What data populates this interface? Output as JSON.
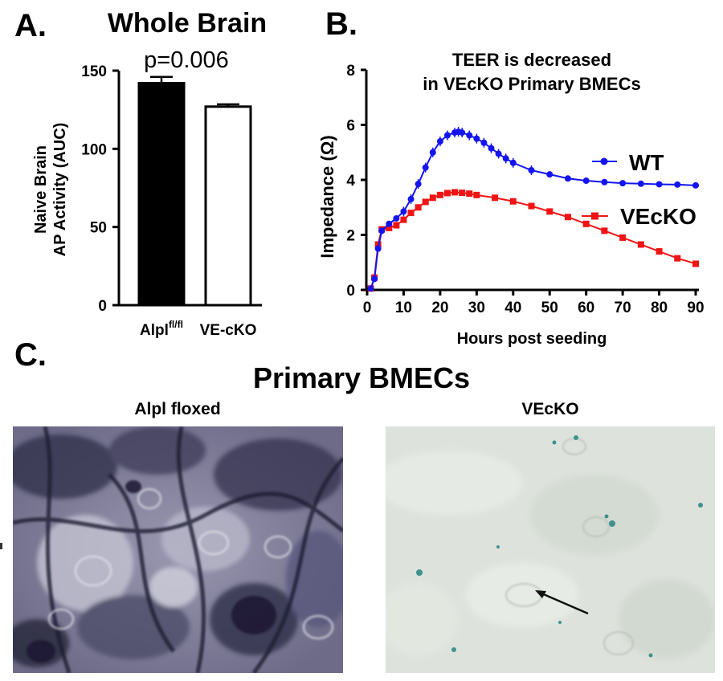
{
  "panels": {
    "a": {
      "letter": "A.",
      "title": "Whole Brain",
      "pvalue": "p=0.006",
      "ylabel_line1": "Naive Brain",
      "ylabel_line2": "AP Activity (AUC)",
      "ytick_labels": [
        "0",
        "50",
        "100",
        "150"
      ],
      "cat1_main": "Alpl",
      "cat1_sup": "fl/fl",
      "cat2": "VE-cKO"
    },
    "b": {
      "letter": "B.",
      "title_line1": "TEER is decreased",
      "title_line2": "in VEcKO Primary BMECs",
      "ylabel": "Impedance (Ω)",
      "xlabel": "Hours post seeding",
      "xtick_labels": [
        "0",
        "10",
        "20",
        "30",
        "40",
        "50",
        "60",
        "70",
        "80",
        "90"
      ],
      "ytick_labels": [
        "0",
        "2",
        "4",
        "6",
        "8"
      ],
      "legend_wt": "WT",
      "legend_vecko": "VEcKO"
    },
    "c": {
      "letter": "C.",
      "title": "Primary BMECs",
      "left_label": "Alpl floxed",
      "right_label": "VEcKO"
    }
  },
  "colors": {
    "wt": "#1414f0",
    "vecko": "#f01414",
    "bar_filled": "#000000",
    "bar_open": "#ffffff"
  },
  "chart_data": [
    {
      "type": "bar",
      "title": "Whole Brain",
      "annotation": "p=0.006",
      "categories": [
        "Alpl fl/fl",
        "VE-cKO"
      ],
      "values": [
        142,
        127
      ],
      "errors": [
        4,
        1.5
      ],
      "ylabel": "Naive Brain AP Activity (AUC)",
      "ylim": [
        0,
        150
      ],
      "yticks": [
        0,
        50,
        100,
        150
      ]
    },
    {
      "type": "line",
      "title": "TEER is decreased in VEcKO Primary BMECs",
      "xlabel": "Hours post seeding",
      "ylabel": "Impedance (Ω)",
      "xlim": [
        0,
        90
      ],
      "ylim": [
        0,
        8
      ],
      "xticks": [
        0,
        10,
        20,
        30,
        40,
        50,
        60,
        70,
        80,
        90
      ],
      "yticks": [
        0,
        2,
        4,
        6,
        8
      ],
      "legend_position": "right",
      "series": [
        {
          "name": "WT",
          "x": [
            1,
            2,
            3,
            4,
            6,
            8,
            10,
            12,
            14,
            16,
            18,
            20,
            22,
            24,
            25,
            26,
            28,
            30,
            32,
            34,
            36,
            38,
            40,
            45,
            50,
            55,
            60,
            65,
            70,
            75,
            80,
            85,
            90
          ],
          "y": [
            0.05,
            0.4,
            1.5,
            2.15,
            2.4,
            2.6,
            2.85,
            3.3,
            3.85,
            4.45,
            5.0,
            5.4,
            5.62,
            5.72,
            5.75,
            5.72,
            5.62,
            5.5,
            5.35,
            5.15,
            4.95,
            4.78,
            4.62,
            4.35,
            4.2,
            4.05,
            3.97,
            3.92,
            3.88,
            3.86,
            3.84,
            3.83,
            3.8
          ]
        },
        {
          "name": "VEcKO",
          "x": [
            1,
            2,
            3,
            4,
            6,
            8,
            10,
            12,
            14,
            16,
            18,
            20,
            22,
            24,
            26,
            28,
            30,
            35,
            40,
            45,
            50,
            55,
            60,
            65,
            70,
            75,
            80,
            85,
            90
          ],
          "y": [
            0.05,
            0.45,
            1.65,
            2.2,
            2.25,
            2.35,
            2.55,
            2.8,
            3.0,
            3.2,
            3.35,
            3.45,
            3.52,
            3.55,
            3.53,
            3.5,
            3.45,
            3.35,
            3.22,
            3.05,
            2.85,
            2.65,
            2.4,
            2.15,
            1.9,
            1.65,
            1.4,
            1.15,
            0.95
          ]
        }
      ]
    }
  ]
}
